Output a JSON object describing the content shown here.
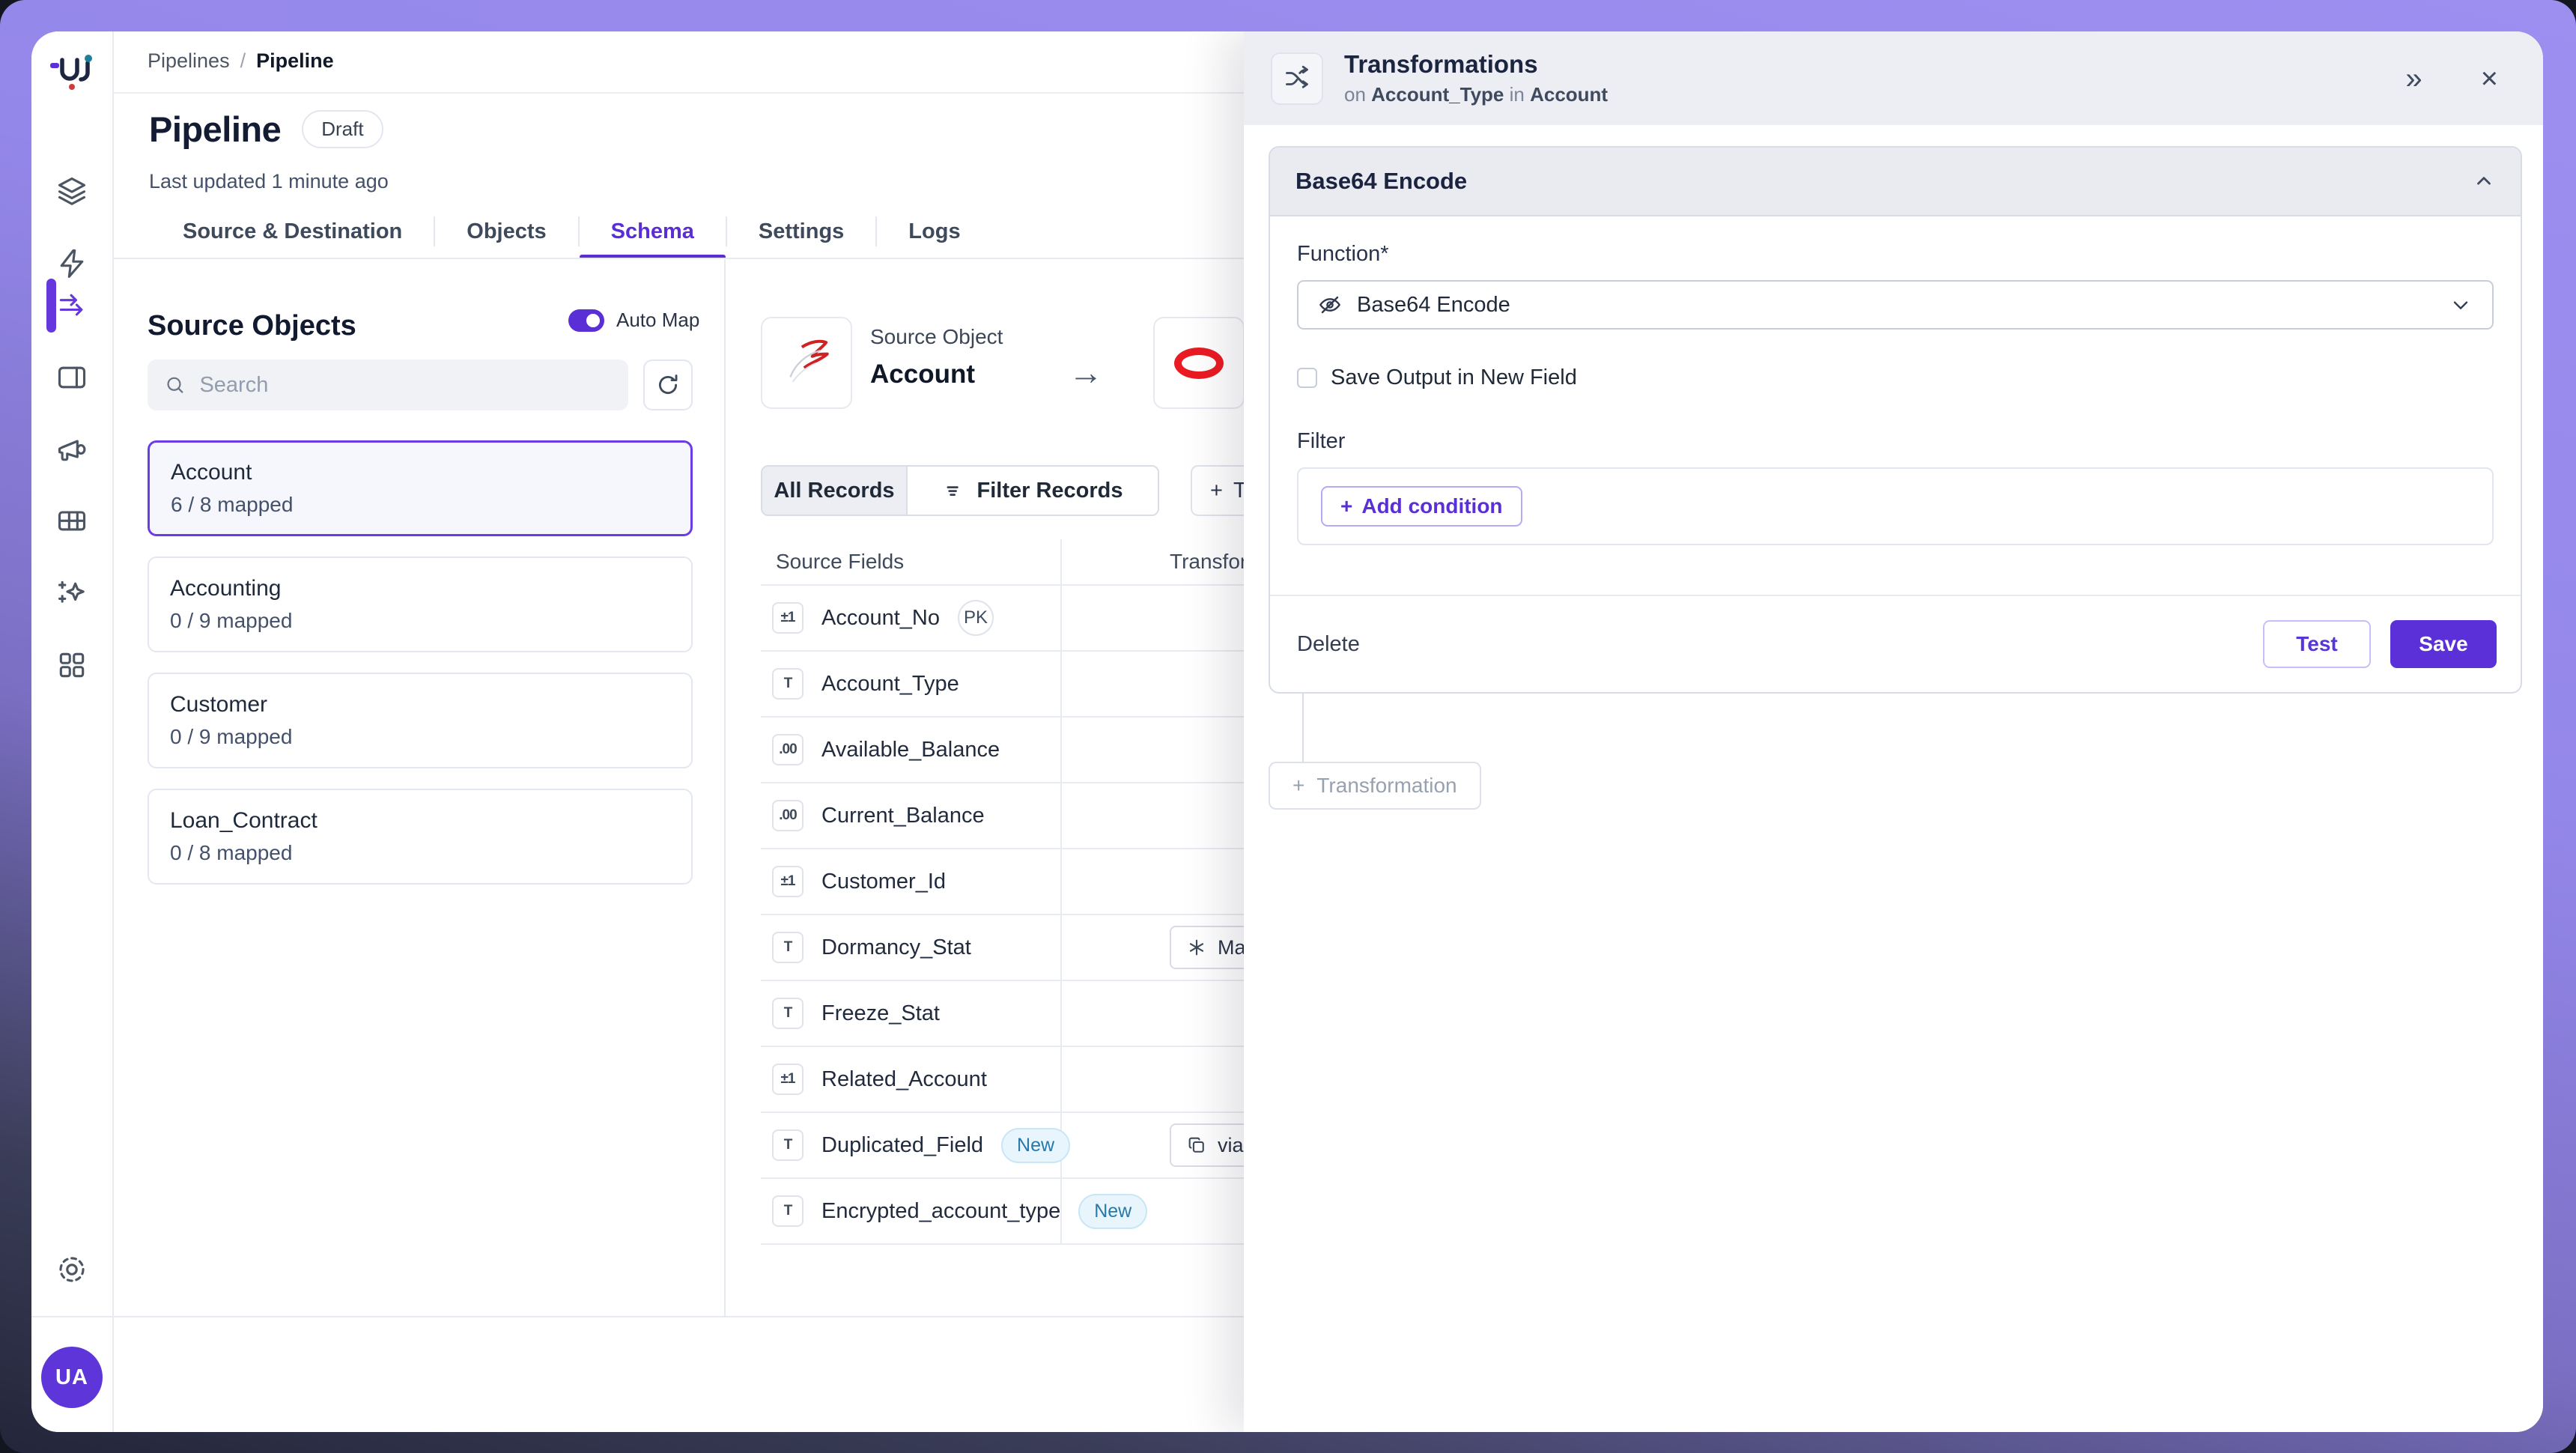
{
  "glyphs": {
    "plus": "+",
    "collapse": "»",
    "close": "×",
    "arrow_right": "→"
  },
  "sidebar": {
    "avatar_initials": "UA"
  },
  "breadcrumb": {
    "root": "Pipelines",
    "separator": "/",
    "current": "Pipeline"
  },
  "page": {
    "title": "Pipeline",
    "status_badge": "Draft",
    "last_updated": "Last updated 1 minute ago"
  },
  "tabs": [
    {
      "label": "Source & Destination"
    },
    {
      "label": "Objects"
    },
    {
      "label": "Schema",
      "active": true
    },
    {
      "label": "Settings"
    },
    {
      "label": "Logs"
    }
  ],
  "source_objects": {
    "heading": "Source Objects",
    "auto_map_label": "Auto Map",
    "search_placeholder": "Search",
    "items": [
      {
        "name": "Account",
        "mapped": "6 / 8 mapped",
        "selected": true
      },
      {
        "name": "Accounting",
        "mapped": "0 / 9 mapped"
      },
      {
        "name": "Customer",
        "mapped": "0 / 9 mapped"
      },
      {
        "name": "Loan_Contract",
        "mapped": "0 / 8 mapped"
      }
    ]
  },
  "mapping": {
    "source_label": "Source Object",
    "source_name": "Account",
    "records_all_label": "All Records",
    "records_filter_label": "Filter Records",
    "add_button_label": "Tr",
    "col_source": "Source Fields",
    "col_transform": "Transfor",
    "fields": [
      {
        "glyph": "±1",
        "name": "Account_No",
        "pk": "PK"
      },
      {
        "glyph": "T",
        "name": "Account_Type"
      },
      {
        "glyph": ".00",
        "name": "Available_Balance"
      },
      {
        "glyph": ".00",
        "name": "Current_Balance"
      },
      {
        "glyph": "±1",
        "name": "Customer_Id"
      },
      {
        "glyph": "T",
        "name": "Dormancy_Stat",
        "transform": {
          "label": "Mask",
          "is_mask": true
        }
      },
      {
        "glyph": "T",
        "name": "Freeze_Stat"
      },
      {
        "glyph": "±1",
        "name": "Related_Account"
      },
      {
        "glyph": "T",
        "name": "Duplicated_Field",
        "new": "New",
        "transform": {
          "label": "via Du",
          "is_copy": true
        }
      },
      {
        "glyph": "T",
        "name": "Encrypted_account_type",
        "new": "New"
      }
    ]
  },
  "transform_panel": {
    "title": "Transformations",
    "subtitle_on": "on",
    "subtitle_field": "Account_Type",
    "subtitle_in": "in",
    "subtitle_object": "Account",
    "card": {
      "title": "Base64 Encode",
      "function_label": "Function*",
      "function_value": "Base64 Encode",
      "save_output_label": "Save Output in New Field",
      "filter_label": "Filter",
      "add_condition_label": "Add condition",
      "delete_label": "Delete",
      "test_label": "Test",
      "save_label": "Save"
    },
    "add_transformation_label": "Transformation"
  },
  "colors": {
    "accent": "#5b2fd6",
    "oracle_red": "#ea1b22",
    "sqlserver_red": "#cf2222",
    "new_badge_text": "#2878a8"
  }
}
